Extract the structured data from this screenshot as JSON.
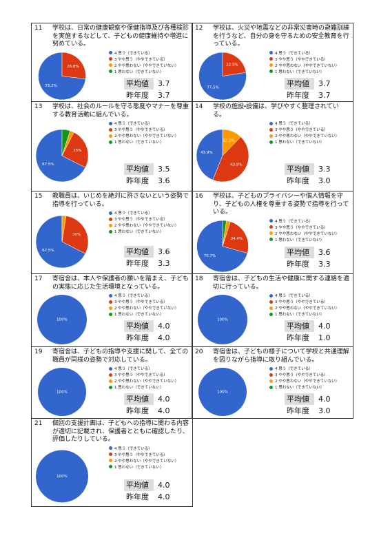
{
  "chart_data": [
    {
      "type": "pie",
      "number": "11",
      "title": "学校は、日常の健康観察や保健指導及び各種検診を実施するなどして、子どもの健康維持や増進に努めている。",
      "categories": [
        "4 思う（できている）",
        "3 やや思う（ややできている）",
        "2 やや思わない（ややできていない）",
        "1 思わない（できていない）"
      ],
      "colors": [
        "#3366cc",
        "#dc3912",
        "#ff9900",
        "#109618"
      ],
      "values": [
        73.2,
        26.8,
        0,
        0
      ],
      "value_labels": [
        "73.2%",
        "26.8%",
        null,
        null
      ],
      "stats": [
        {
          "label": "平均値",
          "value": "3.7"
        },
        {
          "label": "昨年度",
          "value": "3.7"
        }
      ]
    },
    {
      "type": "pie",
      "number": "12",
      "title": "学校は、火災や地震などの非常災害時の避難訓練を行うなど、自分の身を守るための安全教育を行っている。",
      "categories": [
        "4 思う（できている）",
        "3 やや思う（ややできている）",
        "2 やや思わない（ややできていない）",
        "1 思わない（できていない）"
      ],
      "colors": [
        "#3366cc",
        "#dc3912",
        "#ff9900",
        "#109618"
      ],
      "values": [
        77.5,
        22.5,
        0,
        0
      ],
      "value_labels": [
        "77.5%",
        "22.5%",
        null,
        null
      ],
      "stats": [
        {
          "label": "平均値",
          "value": "3.7"
        },
        {
          "label": "昨年度",
          "value": "3.7"
        }
      ]
    },
    {
      "type": "pie",
      "number": "13",
      "title": "学校は、社会のルールを守る態度やマナーを尊重する教育活動に組んでいる。",
      "categories": [
        "4 思う（できている）",
        "3 やや思う（ややできている）",
        "2 やや思わない（ややできていない）",
        "1 思わない（できていない）"
      ],
      "colors": [
        "#3366cc",
        "#dc3912",
        "#ff9900",
        "#109618"
      ],
      "values": [
        67.5,
        25,
        2.5,
        5
      ],
      "value_labels": [
        "67.5%",
        "25%",
        null,
        null
      ],
      "stats": [
        {
          "label": "平均値",
          "value": "3.5"
        },
        {
          "label": "昨年度",
          "value": "3.6"
        }
      ]
    },
    {
      "type": "pie",
      "number": "14",
      "title": "学校の施設・設備は、学びやすく整理されている。",
      "categories": [
        "4 思う（できている）",
        "3 やや思う（ややできている）",
        "2 やや思わない（ややできていない）",
        "1 思わない（できていない）"
      ],
      "colors": [
        "#3366cc",
        "#dc3912",
        "#ff9900",
        "#109618"
      ],
      "values": [
        43.9,
        43.9,
        12.2,
        0
      ],
      "value_labels": [
        "43.9%",
        "43.9%",
        "12.2%",
        null
      ],
      "stats": [
        {
          "label": "平均値",
          "value": "3.3"
        },
        {
          "label": "昨年度",
          "value": "3.0"
        }
      ]
    },
    {
      "type": "pie",
      "number": "15",
      "title": "教職員は、いじめを絶対に許さないという姿勢で指導を行っている。",
      "categories": [
        "4 思う（できている）",
        "3 やや思う（ややできている）",
        "2 やや思わない（ややできていない）",
        "1 思わない（できていない）"
      ],
      "colors": [
        "#3366cc",
        "#dc3912",
        "#ff9900",
        "#109618"
      ],
      "values": [
        67.5,
        30,
        2.5,
        0
      ],
      "value_labels": [
        "67.5%",
        "30%",
        null,
        null
      ],
      "stats": [
        {
          "label": "平均値",
          "value": "3.6"
        },
        {
          "label": "昨年度",
          "value": "3.3"
        }
      ]
    },
    {
      "type": "pie",
      "number": "16",
      "title": "学校は、子どものプライバシーや個人情報を守り、子どもの人権を尊重する姿勢で指導を行っている。",
      "categories": [
        "4 思う（できている）",
        "3 やや思う（ややできている）",
        "2 やや思わない（ややできていない）",
        "1 思わない（できていない）"
      ],
      "colors": [
        "#3366cc",
        "#dc3912",
        "#ff9900",
        "#109618"
      ],
      "values": [
        70.7,
        24.4,
        2.5,
        2.4
      ],
      "value_labels": [
        "70.7%",
        "24.4%",
        null,
        null
      ],
      "stats": [
        {
          "label": "平均値",
          "value": "3.6"
        },
        {
          "label": "昨年度",
          "value": "3.3"
        }
      ]
    },
    {
      "type": "pie",
      "number": "17",
      "title": "寄宿舎は、本人や保護者の願いを踏まえ、子どもの実態に応じた生活環境となっている。",
      "categories": [
        "4 思う（できている）",
        "3 やや思う（ややできている）",
        "2 やや思わない（ややできていない）",
        "1 思わない（できていない）"
      ],
      "colors": [
        "#3366cc",
        "#dc3912",
        "#ff9900",
        "#109618"
      ],
      "values": [
        100,
        0,
        0,
        0
      ],
      "value_labels": [
        "100%",
        null,
        null,
        null
      ],
      "stats": [
        {
          "label": "平均値",
          "value": "4.0"
        },
        {
          "label": "昨年度",
          "value": "4.0"
        }
      ]
    },
    {
      "type": "pie",
      "number": "18",
      "title": "寄宿舎は、子どもの生活や健康に関する連絡を適切に行っている。",
      "categories": [
        "4 思う（できている）",
        "3 やや思う（ややできている）",
        "2 やや思わない（ややできていない）",
        "1 思わない（できていない）"
      ],
      "colors": [
        "#3366cc",
        "#dc3912",
        "#ff9900",
        "#109618"
      ],
      "values": [
        100,
        0,
        0,
        0
      ],
      "value_labels": [
        "100%",
        null,
        null,
        null
      ],
      "stats": [
        {
          "label": "平均値",
          "value": "4.0"
        },
        {
          "label": "昨年度",
          "value": "1.0"
        }
      ]
    },
    {
      "type": "pie",
      "number": "19",
      "title": "寄宿舎は、子どもの指導や支援に関して、全ての職員が同様の姿勢で対応している。",
      "categories": [
        "4 思う（できている）",
        "3 やや思う（ややできている）",
        "2 やや思わない（ややできていない）",
        "1 思わない（できていない）"
      ],
      "colors": [
        "#3366cc",
        "#dc3912",
        "#ff9900",
        "#109618"
      ],
      "values": [
        100,
        0,
        0,
        0
      ],
      "value_labels": [
        "100%",
        null,
        null,
        null
      ],
      "stats": [
        {
          "label": "平均値",
          "value": "4.0"
        },
        {
          "label": "昨年度",
          "value": "4.0"
        }
      ]
    },
    {
      "type": "pie",
      "number": "20",
      "title": "寄宿舎は、子どもの様子について学校と共通理解を図りながら指導に取り組んでいる。",
      "categories": [
        "4 思う（できている）",
        "3 やや思う（ややできている）",
        "2 やや思わない（ややできていない）",
        "1 思わない（できていない）"
      ],
      "colors": [
        "#3366cc",
        "#dc3912",
        "#ff9900",
        "#109618"
      ],
      "values": [
        100,
        0,
        0,
        0
      ],
      "value_labels": [
        "100%",
        null,
        null,
        null
      ],
      "stats": [
        {
          "label": "平均値",
          "value": "4.0"
        },
        {
          "label": "昨年度",
          "value": "3.0"
        }
      ]
    },
    {
      "type": "pie",
      "number": "21",
      "title": "個別の支援計画は、子どもへの指導に関わる内容が適切に記載され、保護者とともに確認したり、評価したりしている。",
      "categories": [
        "4 思う（できている）",
        "3 やや思う（ややできている）",
        "2 やや思わない（ややできていない）",
        "1 思わない（できていない）"
      ],
      "colors": [
        "#3366cc",
        "#dc3912",
        "#ff9900",
        "#109618"
      ],
      "values": [
        100,
        0,
        0,
        0
      ],
      "value_labels": [
        "100%",
        null,
        null,
        null
      ],
      "stats": [
        {
          "label": "平均値",
          "value": "4.0"
        },
        {
          "label": "昨年度",
          "value": "4.0"
        }
      ]
    }
  ]
}
